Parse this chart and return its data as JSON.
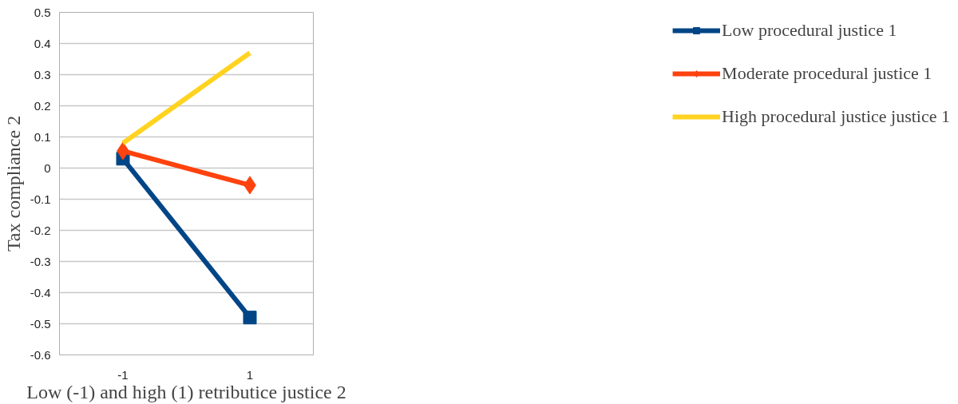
{
  "chart_data": {
    "type": "line",
    "xlabel": "Low (-1) and high (1) retributice justice 2",
    "ylabel": "Tax compliance 2",
    "categories": [
      "-1",
      "1"
    ],
    "series": [
      {
        "name": "Low procedural justice 1",
        "color": "#004586",
        "values": [
          0.03,
          -0.48
        ],
        "marker": "square"
      },
      {
        "name": "Moderate procedural justice 1",
        "color": "#ff420e",
        "values": [
          0.055,
          -0.055
        ],
        "marker": "diamond"
      },
      {
        "name": "High procedural justice justice 1",
        "color": "#ffd320",
        "values": [
          0.08,
          0.37
        ],
        "marker": "none"
      }
    ],
    "ylim": [
      -0.6,
      0.5
    ],
    "yticks": [
      -0.6,
      -0.5,
      -0.4,
      -0.3,
      -0.2,
      -0.1,
      0,
      0.1,
      0.2,
      0.3,
      0.4,
      0.5
    ],
    "grid": "y",
    "legend": "right",
    "line_style": "solid"
  }
}
